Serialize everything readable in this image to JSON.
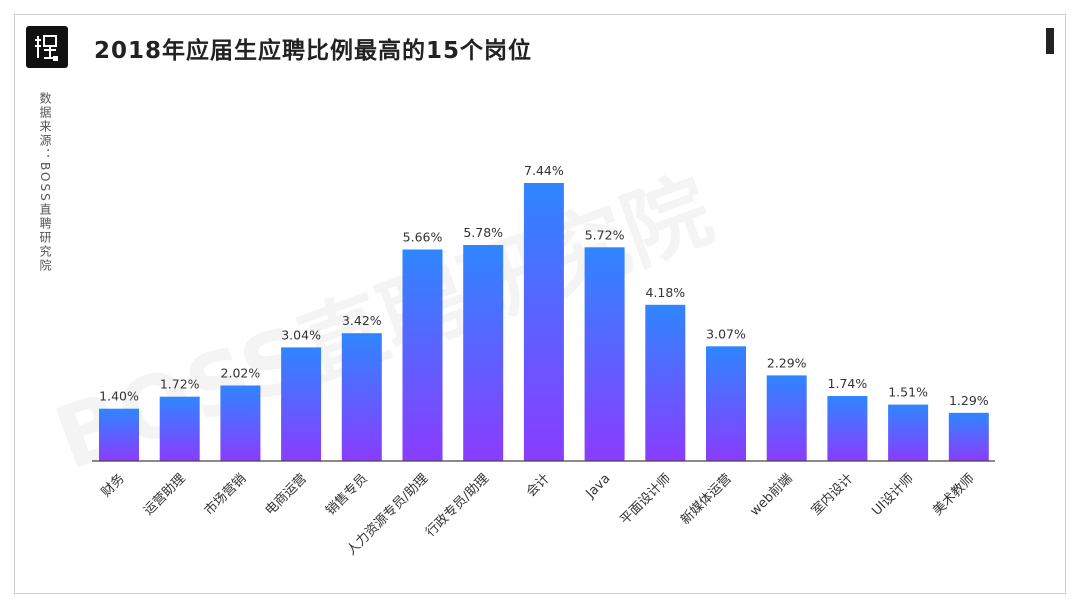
{
  "title": "2018年应届生应聘比例最高的15个岗位",
  "source": "数据来源：BOSS直聘研究院",
  "watermark": "BOSS直聘研究院",
  "colors": {
    "bar_top": "#2f86ff",
    "bar_bottom": "#8a3cff",
    "axis": "#444444",
    "title": "#222222"
  },
  "chart_data": {
    "type": "bar",
    "title": "2018年应届生应聘比例最高的15个岗位",
    "xlabel": "",
    "ylabel": "",
    "ylim": [
      0,
      7.44
    ],
    "grid": false,
    "categories": [
      "财务",
      "运营助理",
      "市场营销",
      "电商运营",
      "销售专员",
      "人力资源专员/助理",
      "行政专员/助理",
      "会计",
      "Java",
      "平面设计师",
      "新媒体运营",
      "web前端",
      "室内设计",
      "UI设计师",
      "美术教师"
    ],
    "values": [
      1.4,
      1.72,
      2.02,
      3.04,
      3.42,
      5.66,
      5.78,
      7.44,
      5.72,
      4.18,
      3.07,
      2.29,
      1.74,
      1.51,
      1.29
    ],
    "value_labels": [
      "1.40%",
      "1.72%",
      "2.02%",
      "3.04%",
      "3.42%",
      "5.66%",
      "5.78%",
      "7.44%",
      "5.72%",
      "4.18%",
      "3.07%",
      "2.29%",
      "1.74%",
      "1.51%",
      "1.29%"
    ]
  }
}
